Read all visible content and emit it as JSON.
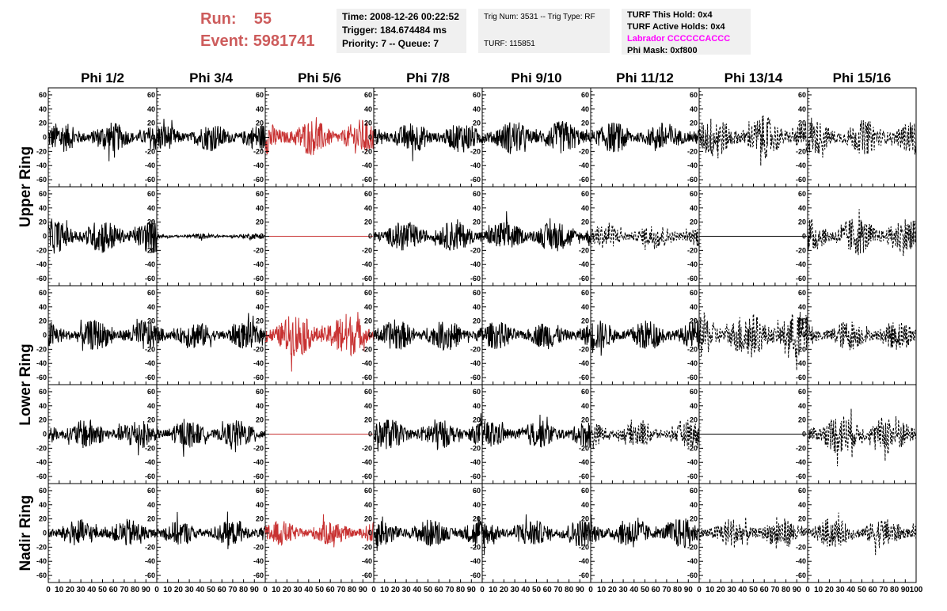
{
  "header": {
    "run_label": "Run:",
    "run_value": "55",
    "event_label": "Event:",
    "event_value": "5981741"
  },
  "info": {
    "time": "Time: 2008-12-26 00:22:52",
    "trigger": "Trigger: 184.674484 ms",
    "priority": "Priority: 7 -- Queue: 7",
    "trig_num": "Trig Num: 3531 -- Trig Type: RF",
    "turf": "TURF: 115851",
    "turf_hold": "TURF This Hold: 0x4",
    "turf_active": "TURF Active Holds: 0x4",
    "labrador": "Labrador CCCCCCACCC",
    "phi_mask": "Phi Mask: 0xf800"
  },
  "colors": {
    "trace": "#000000",
    "highlight": "#c83232",
    "run_text": "#cd5c5c",
    "labrador": "#ff00ff",
    "info_bg": "#f0f0f0"
  },
  "chart_data": {
    "type": "line",
    "columns": [
      "Phi 1/2",
      "Phi 3/4",
      "Phi 5/6",
      "Phi 7/8",
      "Phi 9/10",
      "Phi 11/12",
      "Phi 13/14",
      "Phi 15/16"
    ],
    "rows": [
      "Upper Ring",
      "Lower Ring",
      "Nadir Ring"
    ],
    "row_spans": [
      2,
      2,
      1
    ],
    "ylim": [
      -70,
      70
    ],
    "yticks": [
      -60,
      -40,
      -20,
      0,
      20,
      40,
      60
    ],
    "xlim": [
      0,
      100
    ],
    "xticks": [
      0,
      10,
      20,
      30,
      40,
      50,
      60,
      70,
      80,
      90,
      100
    ],
    "x_tick_labels": [
      "0",
      "10",
      "20",
      "30",
      "40",
      "50",
      "60",
      "70",
      "80",
      "90",
      "100"
    ],
    "panels": [
      [
        {
          "style": "solid",
          "color": "black",
          "amplitude": 22
        },
        {
          "style": "solid",
          "color": "black",
          "amplitude": 20
        },
        {
          "style": "solid",
          "color": "red",
          "amplitude": 26
        },
        {
          "style": "solid",
          "color": "black",
          "amplitude": 22
        },
        {
          "style": "solid",
          "color": "black",
          "amplitude": 24
        },
        {
          "style": "solid",
          "color": "black",
          "amplitude": 22
        },
        {
          "style": "dashed",
          "color": "black",
          "amplitude": 30
        },
        {
          "style": "dashed",
          "color": "black",
          "amplitude": 25
        }
      ],
      [
        {
          "style": "solid",
          "color": "black",
          "amplitude": 25
        },
        {
          "style": "solid",
          "color": "black",
          "amplitude": 4
        },
        {
          "style": "flat",
          "color": "red",
          "amplitude": 0
        },
        {
          "style": "solid",
          "color": "black",
          "amplitude": 22
        },
        {
          "style": "solid",
          "color": "black",
          "amplitude": 22
        },
        {
          "style": "dashed",
          "color": "black",
          "amplitude": 18
        },
        {
          "style": "flat",
          "color": "black",
          "amplitude": 0
        },
        {
          "style": "dashed",
          "color": "black",
          "amplitude": 28
        }
      ],
      [
        {
          "style": "solid",
          "color": "black",
          "amplitude": 22
        },
        {
          "style": "solid",
          "color": "black",
          "amplitude": 20
        },
        {
          "style": "solid",
          "color": "red",
          "amplitude": 32
        },
        {
          "style": "solid",
          "color": "black",
          "amplitude": 22
        },
        {
          "style": "solid",
          "color": "black",
          "amplitude": 20
        },
        {
          "style": "solid",
          "color": "black",
          "amplitude": 22
        },
        {
          "style": "dashed",
          "color": "black",
          "amplitude": 35
        },
        {
          "style": "dashed",
          "color": "black",
          "amplitude": 22
        }
      ],
      [
        {
          "style": "solid",
          "color": "black",
          "amplitude": 22
        },
        {
          "style": "solid",
          "color": "black",
          "amplitude": 20
        },
        {
          "style": "flat",
          "color": "red",
          "amplitude": 0
        },
        {
          "style": "solid",
          "color": "black",
          "amplitude": 22
        },
        {
          "style": "solid",
          "color": "black",
          "amplitude": 20
        },
        {
          "style": "dashed",
          "color": "black",
          "amplitude": 18
        },
        {
          "style": "flat",
          "color": "black",
          "amplitude": 0
        },
        {
          "style": "dashed",
          "color": "black",
          "amplitude": 30
        }
      ],
      [
        {
          "style": "solid",
          "color": "black",
          "amplitude": 20
        },
        {
          "style": "solid",
          "color": "black",
          "amplitude": 18
        },
        {
          "style": "solid",
          "color": "red",
          "amplitude": 18
        },
        {
          "style": "solid",
          "color": "black",
          "amplitude": 20
        },
        {
          "style": "solid",
          "color": "black",
          "amplitude": 20
        },
        {
          "style": "solid",
          "color": "black",
          "amplitude": 22
        },
        {
          "style": "dashed",
          "color": "black",
          "amplitude": 22
        },
        {
          "style": "dashed",
          "color": "black",
          "amplitude": 22
        }
      ]
    ]
  }
}
